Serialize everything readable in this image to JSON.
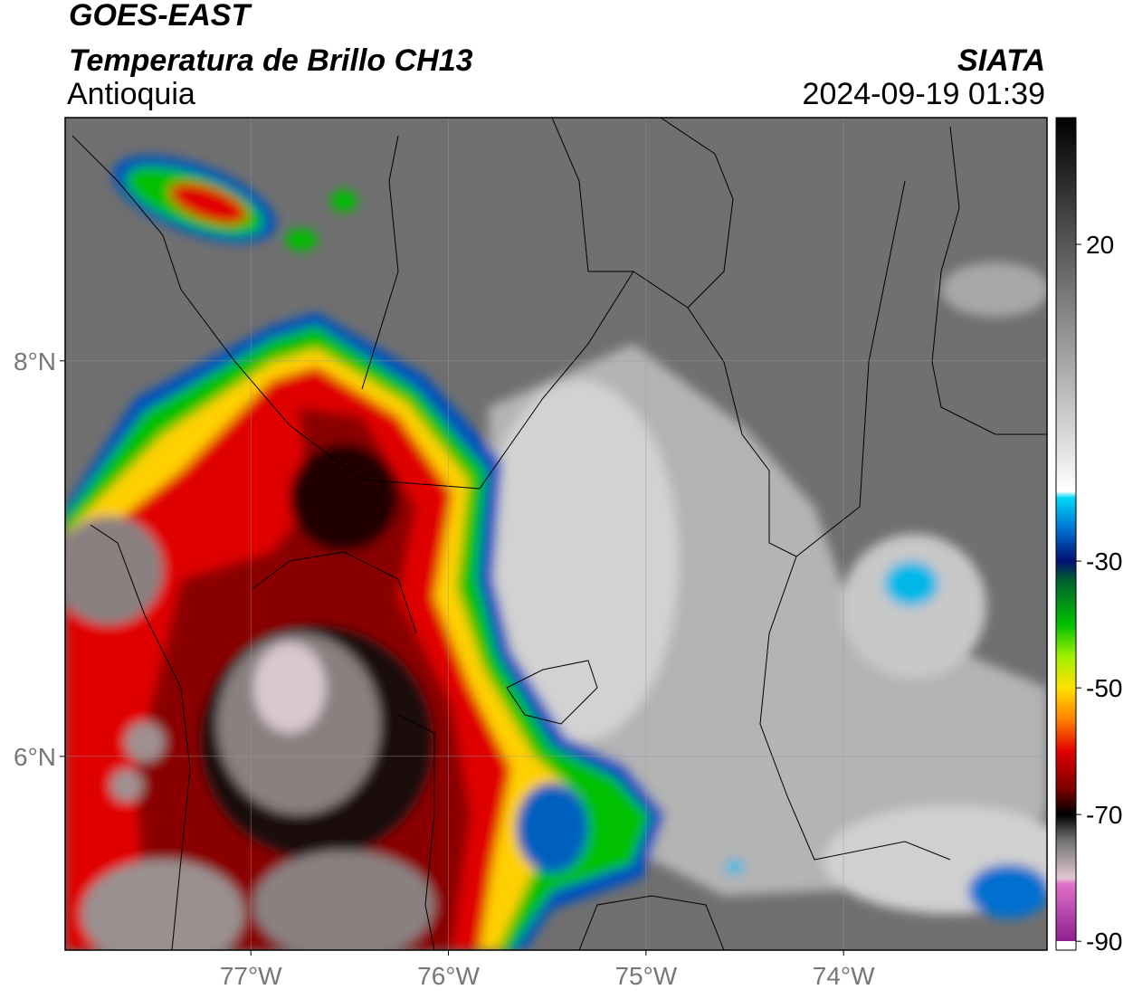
{
  "header": {
    "title": "GOES-EAST",
    "subtitle": "Temperatura de Brillo CH13",
    "region": "Antioquia",
    "source": "SIATA",
    "datetime": "2024-09-19 01:39"
  },
  "map": {
    "lon_lim": [
      -77.94,
      -72.97
    ],
    "lat_lim": [
      5.02,
      9.23
    ],
    "lon_ticks": [
      {
        "value": -77,
        "label": "77°W"
      },
      {
        "value": -76,
        "label": "76°W"
      },
      {
        "value": -75,
        "label": "75°W"
      },
      {
        "value": -74,
        "label": "74°W"
      }
    ],
    "lat_ticks": [
      {
        "value": 8,
        "label": "8°N"
      },
      {
        "value": 6,
        "label": "6°N"
      }
    ]
  },
  "colorbar": {
    "lim": [
      -91.4,
      40
    ],
    "ticks": [
      20,
      -30,
      -50,
      -70,
      -90
    ],
    "stops": [
      {
        "value": -91.4,
        "color": "#ffffff"
      },
      {
        "value": -90,
        "color": "#ffffff"
      },
      {
        "value": -90,
        "color": "#8e1f8e"
      },
      {
        "value": -81,
        "color": "#e070c8"
      },
      {
        "value": -80,
        "color": "#e0c8d0"
      },
      {
        "value": -74,
        "color": "#707070"
      },
      {
        "value": -70,
        "color": "#000000"
      },
      {
        "value": -66,
        "color": "#7a0000"
      },
      {
        "value": -60,
        "color": "#e00000"
      },
      {
        "value": -55,
        "color": "#ff8000"
      },
      {
        "value": -50,
        "color": "#ffe000"
      },
      {
        "value": -45,
        "color": "#a0f000"
      },
      {
        "value": -40,
        "color": "#00c000"
      },
      {
        "value": -33,
        "color": "#006030"
      },
      {
        "value": -30,
        "color": "#001070"
      },
      {
        "value": -25,
        "color": "#0070d0"
      },
      {
        "value": -20,
        "color": "#00d8f8"
      },
      {
        "value": -19,
        "color": "#ffffff"
      },
      {
        "value": 40,
        "color": "#000000"
      }
    ]
  }
}
